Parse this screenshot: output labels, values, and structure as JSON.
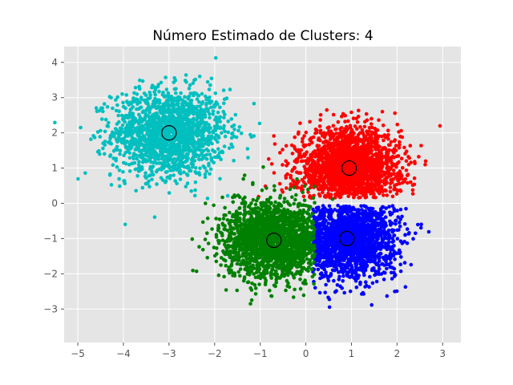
{
  "chart_data": {
    "type": "scatter",
    "title": "Número Estimado de Clusters: 4",
    "xlabel": "",
    "ylabel": "",
    "xlim": [
      -5.3,
      3.4
    ],
    "ylim": [
      -3.95,
      4.45
    ],
    "x_ticks": [
      -5,
      -4,
      -3,
      -2,
      -1,
      0,
      1,
      2,
      3
    ],
    "y_ticks": [
      -3,
      -2,
      -1,
      0,
      1,
      2,
      3,
      4
    ],
    "x_tick_labels": [
      "−5",
      "−4",
      "−3",
      "−2",
      "−1",
      "0",
      "1",
      "2",
      "3"
    ],
    "y_tick_labels": [
      "−3",
      "−2",
      "−1",
      "0",
      "1",
      "2",
      "3",
      "4"
    ],
    "grid": true,
    "legend": "none",
    "style": {
      "background": "#e5e5e5",
      "grid_color": "#ffffff",
      "tick_color": "#555555"
    },
    "clusters": [
      {
        "color": "#00bfbf",
        "center": [
          -3.0,
          2.0
        ],
        "spread": 0.62,
        "n_points": 1700
      },
      {
        "color": "#ff0000",
        "center": [
          0.95,
          1.0
        ],
        "spread": 0.55,
        "n_points": 2200
      },
      {
        "color": "#0000ff",
        "center": [
          0.9,
          -1.0
        ],
        "spread": 0.55,
        "n_points": 2000
      },
      {
        "color": "#008000",
        "center": [
          -0.7,
          -1.05
        ],
        "spread": 0.55,
        "n_points": 2100
      }
    ],
    "cluster_centers": [
      {
        "x": -3.0,
        "y": 2.0
      },
      {
        "x": 0.95,
        "y": 1.0
      },
      {
        "x": 0.9,
        "y": -1.0
      },
      {
        "x": -0.7,
        "y": -1.05
      }
    ]
  }
}
